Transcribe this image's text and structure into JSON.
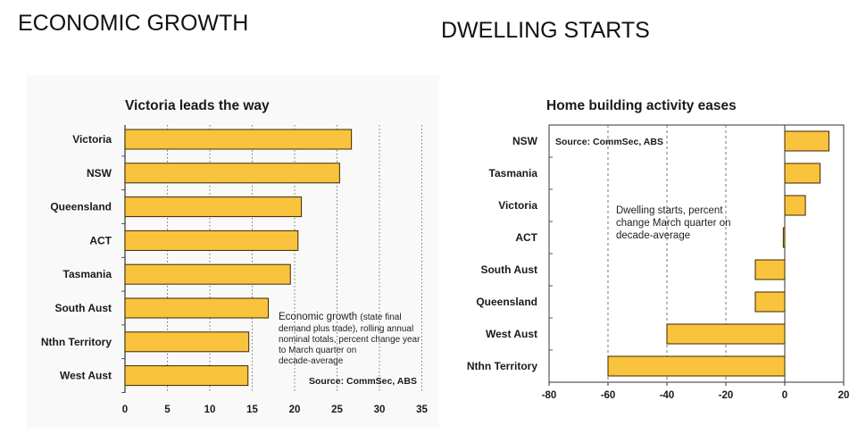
{
  "headings": {
    "left": "ECONOMIC GROWTH",
    "right": "DWELLING STARTS"
  },
  "colors": {
    "bar_fill": "#f9c33d",
    "bar_stroke": "#3a2a00",
    "grid": "#555555"
  },
  "chart_data": [
    {
      "type": "bar",
      "orientation": "horizontal",
      "title": "Victoria leads the way",
      "categories": [
        "Victoria",
        "NSW",
        "Queensland",
        "ACT",
        "Tasmania",
        "South Aust",
        "Nthn Territory",
        "West Aust"
      ],
      "values": [
        26.7,
        25.3,
        20.8,
        20.4,
        19.5,
        16.9,
        14.6,
        14.5
      ],
      "xlim": [
        0,
        35
      ],
      "xticks": [
        "0",
        "5",
        "10",
        "15",
        "20",
        "25",
        "30",
        "35"
      ],
      "grid": "vertical dotted",
      "annotation": {
        "line1_main": "Economic growth ",
        "line1_small": "(state final",
        "line2": "demand plus trade), rolling annual",
        "line3": "nominal totals, percent change year",
        "line4": "to March quarter on",
        "line5": "decade-average"
      },
      "source": "Source: CommSec, ABS"
    },
    {
      "type": "bar",
      "orientation": "horizontal",
      "title": "Home building activity eases",
      "categories": [
        "NSW",
        "Tasmania",
        "Victoria",
        "ACT",
        "South Aust",
        "Queensland",
        "West Aust",
        "Nthn Territory"
      ],
      "values": [
        15,
        12,
        7,
        -0.5,
        -10,
        -10,
        -40,
        -60
      ],
      "xlim": [
        -80,
        20
      ],
      "xticks": [
        "-80",
        "-60",
        "-40",
        "-20",
        "0",
        "20"
      ],
      "grid": "vertical dashed",
      "annotation": {
        "line1": "Dwelling starts, percent",
        "line2": "change March quarter on",
        "line3": "decade-average"
      },
      "source": "Source: CommSec, ABS"
    }
  ]
}
